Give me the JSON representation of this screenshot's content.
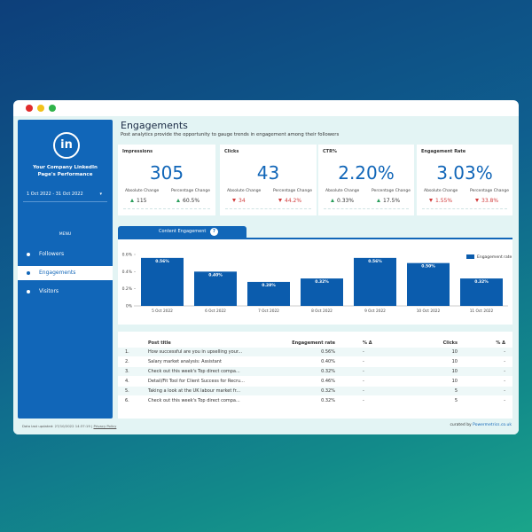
{
  "sidebar": {
    "logo_text": "in",
    "company_title": "Your Company LinkedIn Page's Performance",
    "date_range": "1 Oct 2022 - 31 Oct 2022",
    "menu_label": "MENU",
    "menu": [
      "Followers",
      "Engagements",
      "Visitors"
    ],
    "active_menu": 1
  },
  "footer": {
    "updated": "Data last updated: 27/10/2022 14:37:19",
    "privacy": "Privacy Policy",
    "curated_prefix": "curated by",
    "curated_by": "Powermetrics.co.uk"
  },
  "header": {
    "title": "Engagements",
    "subtitle": "Post analytics provide the opportunity to gauge trends in engagement among their followers"
  },
  "kpis": [
    {
      "title": "Impressions",
      "value": "305",
      "abs_label": "Absolute Change",
      "abs_change": "115",
      "pct_label": "Percentage Change",
      "pct_change": "60.5%",
      "trend": "up"
    },
    {
      "title": "Clicks",
      "value": "43",
      "abs_label": "Absolute Change",
      "abs_change": "34",
      "pct_label": "Percentage Change",
      "pct_change": "44.2%",
      "trend": "down"
    },
    {
      "title": "CTR%",
      "value": "2.20%",
      "abs_label": "Absolute Change",
      "abs_change": "0.33%",
      "pct_label": "Percentage Change",
      "pct_change": "17.5%",
      "trend": "up"
    },
    {
      "title": "Engagement Rate",
      "value": "3.03%",
      "abs_label": "Absolute Change",
      "abs_change": "1.55%",
      "pct_label": "Percentage Change",
      "pct_change": "33.8%",
      "trend": "down"
    }
  ],
  "tab": {
    "label": "Content Engagement",
    "help": "?"
  },
  "chart_data": {
    "type": "bar",
    "categories": [
      "5 Oct 2022",
      "6 Oct 2022",
      "7 Oct 2022",
      "8 Oct 2022",
      "9 Oct 2022",
      "10 Oct 2022",
      "11 Oct 2022"
    ],
    "series": [
      {
        "name": "Engagement rate",
        "color": "#0b5cad",
        "values": [
          0.56,
          0.4,
          0.28,
          0.32,
          0.56,
          0.5,
          0.32
        ],
        "value_labels": [
          "0.56%",
          "0.40%",
          "0.28%",
          "0.32%",
          "0.56%",
          "0.50%",
          "0.32%"
        ]
      }
    ],
    "ylim": [
      0,
      0.6
    ],
    "yticks": [
      {
        "value": 0,
        "label": "0%"
      },
      {
        "value": 0.2,
        "label": "0.2%"
      },
      {
        "value": 0.4,
        "label": "0.4%"
      },
      {
        "value": 0.6,
        "label": "0.6%"
      }
    ],
    "legend": "top-right"
  },
  "table": {
    "columns": [
      "Post title",
      "Engagement rate",
      "% Δ",
      "Clicks",
      "% Δ"
    ],
    "rows": [
      [
        "1.",
        "How successful are you in upselling your...",
        "0.56%",
        "-",
        "10",
        "-"
      ],
      [
        "2.",
        "Salary market analysis: Assistant",
        "0.40%",
        "-",
        "10",
        "-"
      ],
      [
        "3.",
        "Check out this week's Top direct compa...",
        "0.32%",
        "-",
        "10",
        "-"
      ],
      [
        "4.",
        "Detail/Fit Tool for Client Success for Recru...",
        "0.46%",
        "-",
        "10",
        "-"
      ],
      [
        "5.",
        "Taking a look at the UK labour market fr...",
        "0.32%",
        "-",
        "5",
        "-"
      ],
      [
        "6.",
        "Check out this week's Top direct compa...",
        "0.32%",
        "-",
        "5",
        "-"
      ]
    ]
  }
}
